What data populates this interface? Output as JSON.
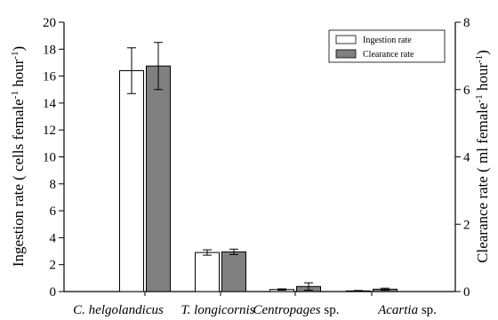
{
  "chart_data": {
    "type": "bar",
    "categories": [
      {
        "name": "C. helgolandicus",
        "suffix": ""
      },
      {
        "name": "T. longicornis",
        "suffix": ""
      },
      {
        "name": "Centropages",
        "suffix": " sp."
      },
      {
        "name": "Acartia",
        "suffix": " sp."
      }
    ],
    "y_left": {
      "label": "Ingestion rate ( cells female",
      "unit_exp": "-1",
      "unit_mid": " hour",
      "unit_exp2": "-1",
      "unit_end": ")",
      "ylim": [
        0,
        20
      ],
      "ticks": [
        0,
        2,
        4,
        6,
        8,
        10,
        12,
        14,
        16,
        18,
        20
      ]
    },
    "y_right": {
      "label": "Clearance rate ( ml female",
      "unit_exp": "-1",
      "unit_mid": " hour",
      "unit_exp2": "-1",
      "unit_end": ")",
      "ylim": [
        0,
        8
      ],
      "ticks": [
        0,
        2,
        4,
        6,
        8
      ]
    },
    "series": [
      {
        "name": "Ingestion rate",
        "axis": "left",
        "color": "#ffffff",
        "values": [
          16.4,
          2.9,
          0.15,
          0.05
        ],
        "errors": [
          1.7,
          0.2,
          0.05,
          0.03
        ]
      },
      {
        "name": "Clearance rate",
        "axis": "right",
        "color": "#808080",
        "values": [
          6.7,
          1.18,
          0.15,
          0.07
        ],
        "errors": [
          0.7,
          0.08,
          0.11,
          0.03
        ]
      }
    ],
    "legend_position": "top-right",
    "grid": false
  }
}
